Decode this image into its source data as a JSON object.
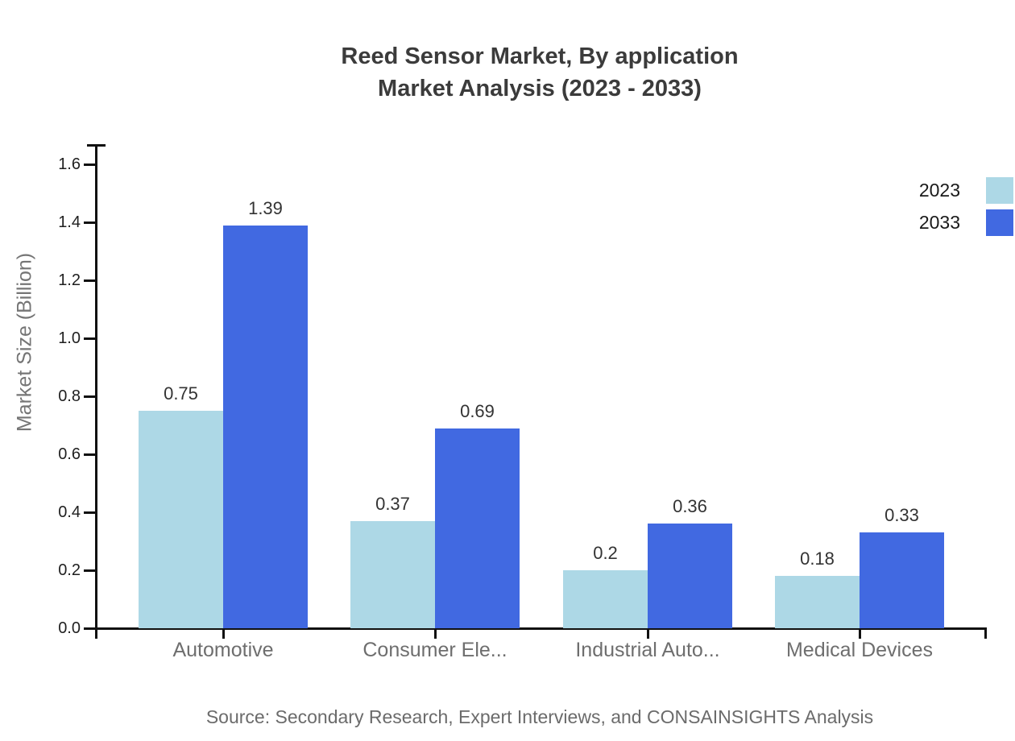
{
  "title": {
    "line1": "Reed Sensor Market, By application",
    "line2": "Market Analysis (2023 - 2033)"
  },
  "legend": {
    "position": "top-right",
    "items": [
      {
        "label": "2023",
        "color": "#ADD8E6"
      },
      {
        "label": "2033",
        "color": "#4169E1"
      }
    ]
  },
  "source_note": "Source: Secondary Research, Expert Interviews, and CONSAINSIGHTS Analysis",
  "colors": {
    "series_2023": "#ADD8E6",
    "series_2033": "#4169E1",
    "axis": "#111111",
    "title_text": "#3b3b3b",
    "category_text": "#6e6e6e",
    "tick_text": "#1f1f1f",
    "value_text": "#333333"
  },
  "chart_data": {
    "type": "bar",
    "title": "Reed Sensor Market, By application Market Analysis (2023 - 2033)",
    "categories": [
      "Automotive",
      "Consumer Ele...",
      "Industrial Auto...",
      "Medical Devices"
    ],
    "series": [
      {
        "name": "2023",
        "color": "#ADD8E6",
        "values": [
          0.75,
          0.37,
          0.2,
          0.18
        ]
      },
      {
        "name": "2033",
        "color": "#4169E1",
        "values": [
          1.39,
          0.69,
          0.36,
          0.33
        ]
      }
    ],
    "xlabel": "",
    "ylabel": "Market Size (Billion)",
    "ylim": [
      0,
      1.67
    ],
    "yticks": [
      "0.0",
      "0.2",
      "0.4",
      "0.6",
      "0.8",
      "1.0",
      "1.2",
      "1.4",
      "1.6"
    ],
    "grid": false,
    "value_labels": true,
    "legend_position": "top-right"
  }
}
